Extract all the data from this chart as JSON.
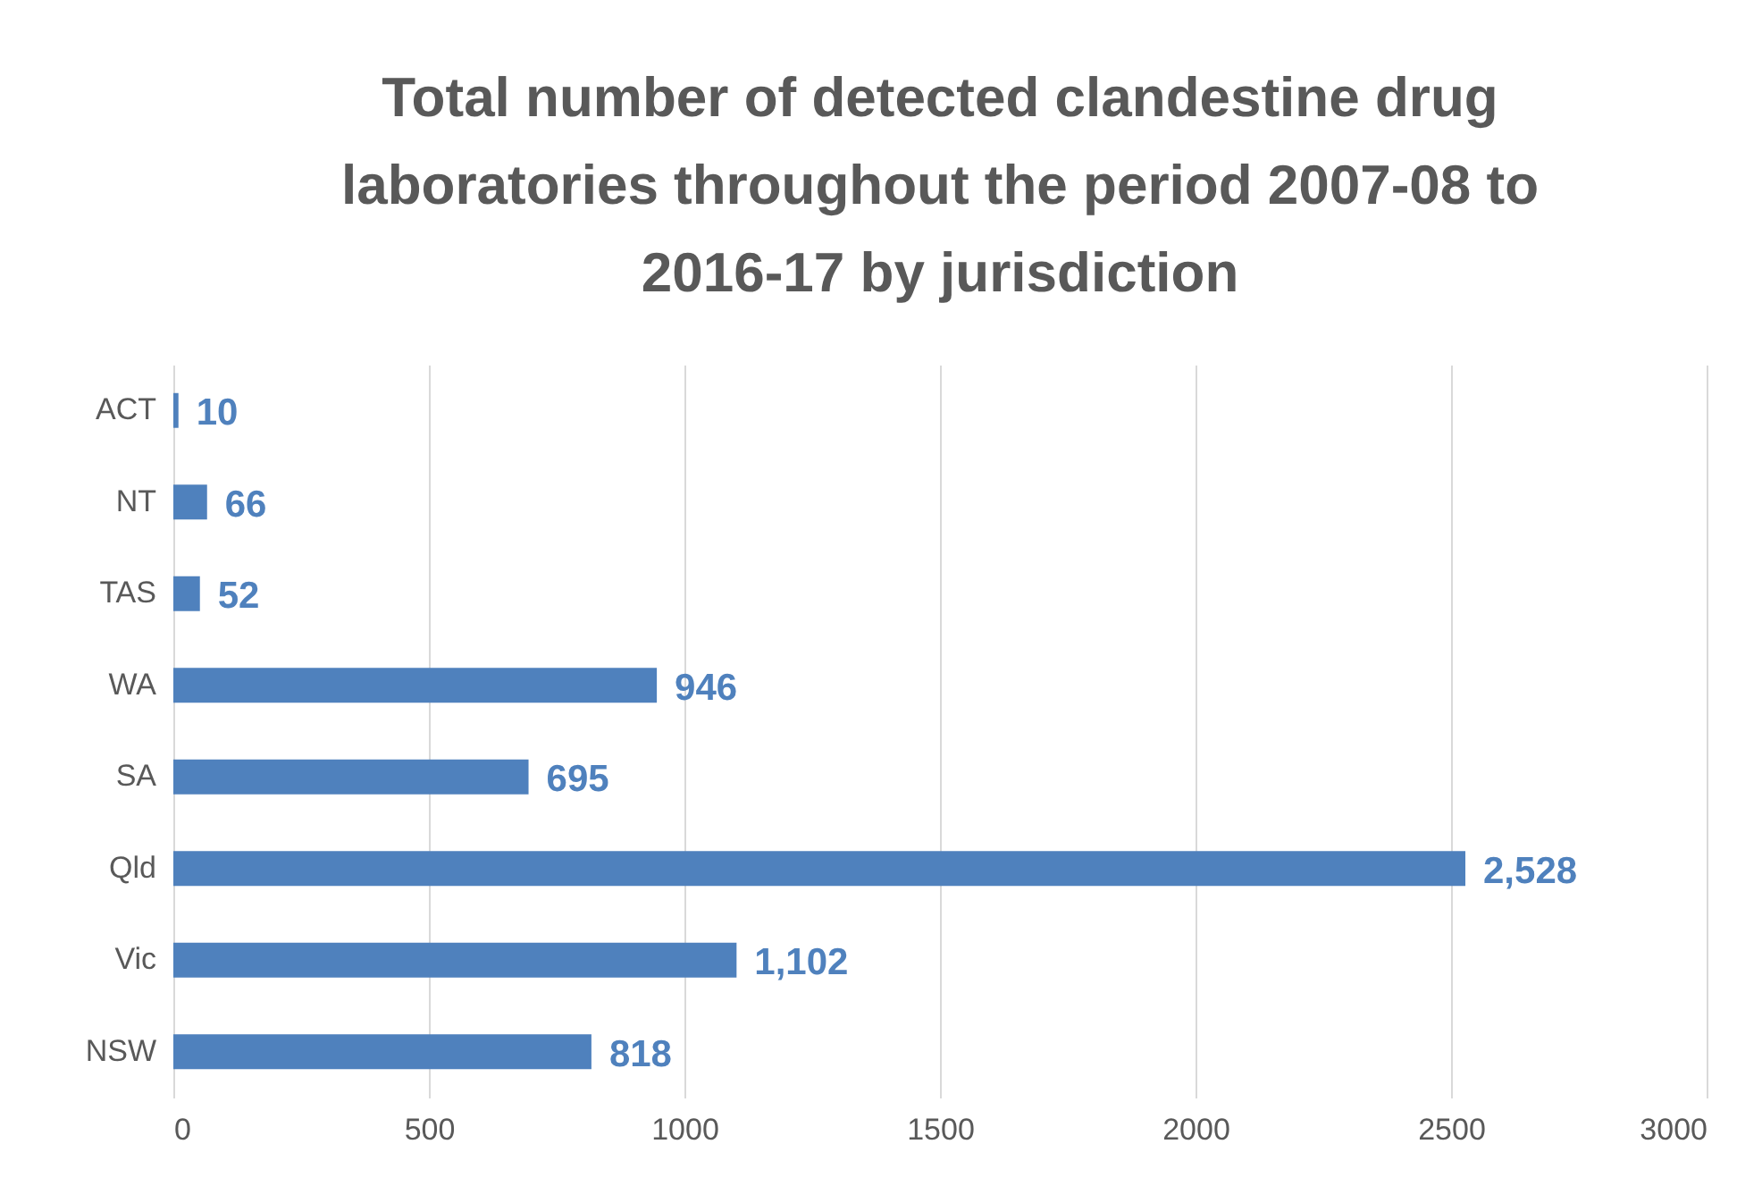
{
  "chart_data": {
    "type": "bar",
    "orientation": "horizontal",
    "title": "Total number of detected clandestine drug laboratories  throughout the period 2007-08 to 2016-17 by jurisdiction",
    "categories": [
      "ACT",
      "NT",
      "TAS",
      "WA",
      "SA",
      "Qld",
      "Vic",
      "NSW"
    ],
    "values": [
      10,
      66,
      52,
      946,
      695,
      2528,
      1102,
      818
    ],
    "value_labels": [
      "10",
      "66",
      "52",
      "946",
      "695",
      "2,528",
      "1,102",
      "818"
    ],
    "color": "#4f81bd",
    "xlim": [
      0,
      3000
    ],
    "xticks": [
      0,
      500,
      1000,
      1500,
      2000,
      2500,
      3000
    ],
    "grid": "x"
  }
}
